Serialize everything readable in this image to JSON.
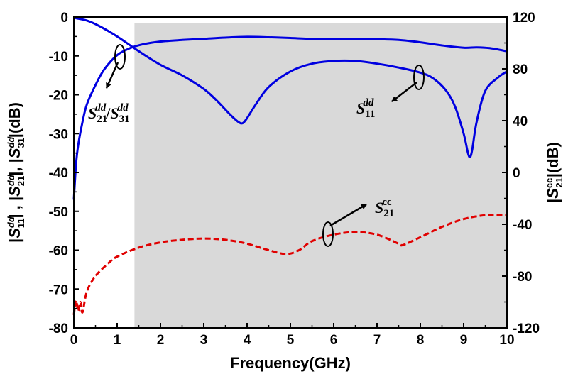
{
  "chart_data": {
    "type": "line",
    "title": "",
    "xlabel": "Frequency(GHz)",
    "ylabel_left": "|S11dd| , |S21dd|, |S31dd|(dB)",
    "ylabel_right": "|S21cc|(dB)",
    "xlim": [
      0,
      10
    ],
    "ylim_left": [
      -80,
      0
    ],
    "ylim_right": [
      -120,
      120
    ],
    "x_ticks": [
      0,
      1,
      2,
      3,
      4,
      5,
      6,
      7,
      8,
      9,
      10
    ],
    "y_left_ticks": [
      0,
      -10,
      -20,
      -30,
      -40,
      -50,
      -60,
      -70,
      -80
    ],
    "y_right_ticks": [
      120,
      80,
      40,
      0,
      -40,
      -80,
      -120
    ],
    "passband_shading": {
      "x_start": 1.4,
      "x_end": 10,
      "color": "#d9d9d9"
    },
    "series": [
      {
        "name": "S21dd/S31dd",
        "axis": "left",
        "color": "#0000e0",
        "style": "solid",
        "x": [
          0,
          0.05,
          0.1,
          0.2,
          0.3,
          0.5,
          0.7,
          1.0,
          1.3,
          1.6,
          2.0,
          2.5,
          3.0,
          3.5,
          4.0,
          4.5,
          5.0,
          5.5,
          6.0,
          6.5,
          7.0,
          7.5,
          8.0,
          8.5,
          9.0,
          9.3,
          9.6,
          10.0
        ],
        "values": [
          -47,
          -38,
          -33,
          -27,
          -22.5,
          -17.5,
          -13.5,
          -9.8,
          -8.0,
          -7.0,
          -6.3,
          -5.9,
          -5.6,
          -5.3,
          -5.1,
          -5.2,
          -5.4,
          -5.6,
          -5.6,
          -5.6,
          -5.7,
          -5.9,
          -6.5,
          -7.3,
          -7.9,
          -7.8,
          -8.0,
          -8.8
        ]
      },
      {
        "name": "S11dd",
        "axis": "left",
        "color": "#0000e0",
        "style": "solid",
        "x": [
          0,
          0.3,
          0.6,
          1.0,
          1.5,
          2.0,
          2.5,
          3.0,
          3.3,
          3.6,
          3.8,
          3.9,
          4.0,
          4.2,
          4.5,
          5.0,
          5.5,
          6.0,
          6.5,
          7.0,
          7.5,
          8.0,
          8.3,
          8.6,
          8.8,
          9.0,
          9.1,
          9.15,
          9.2,
          9.3,
          9.5,
          9.8,
          10.0
        ],
        "values": [
          -0.2,
          -0.9,
          -2.4,
          -5.0,
          -8.8,
          -12.3,
          -15.0,
          -18.5,
          -21.5,
          -25.0,
          -27.0,
          -27.3,
          -26.0,
          -22.5,
          -18.0,
          -14.0,
          -12.0,
          -11.3,
          -11.3,
          -12.0,
          -13.0,
          -14.3,
          -15.8,
          -19.0,
          -23.0,
          -30.0,
          -35.0,
          -36.0,
          -34.0,
          -27.0,
          -19.0,
          -15.5,
          -14.0
        ]
      },
      {
        "name": "S21cc",
        "axis": "right",
        "color": "#e00000",
        "style": "dashed",
        "x": [
          0,
          0.05,
          0.1,
          0.15,
          0.2,
          0.3,
          0.5,
          0.8,
          1.0,
          1.5,
          2.0,
          2.5,
          3.0,
          3.5,
          4.0,
          4.5,
          4.9,
          5.2,
          5.5,
          6.0,
          6.5,
          7.0,
          7.5,
          7.6,
          8.0,
          8.5,
          9.0,
          9.5,
          10.0
        ],
        "values": [
          -110,
          -99,
          -107,
          -100,
          -108,
          -92,
          -80,
          -70,
          -65,
          -58,
          -54,
          -52,
          -51,
          -52,
          -55,
          -60,
          -63,
          -60,
          -53,
          -48,
          -46,
          -48,
          -55,
          -56,
          -50,
          -42,
          -36,
          -33,
          -33
        ]
      }
    ],
    "annotations": [
      {
        "label_main": "S",
        "label_sub": "21",
        "label_sup": "dd",
        "label_sep": "/",
        "label_main2": "S",
        "label_sub2": "31",
        "label_sup2": "dd",
        "target": "S21dd/S31dd"
      },
      {
        "label_main": "S",
        "label_sub": "11",
        "label_sup": "dd",
        "target": "S11dd"
      },
      {
        "label_main": "S",
        "label_sub": "21",
        "label_sup": "cc",
        "target": "S21cc"
      }
    ]
  }
}
